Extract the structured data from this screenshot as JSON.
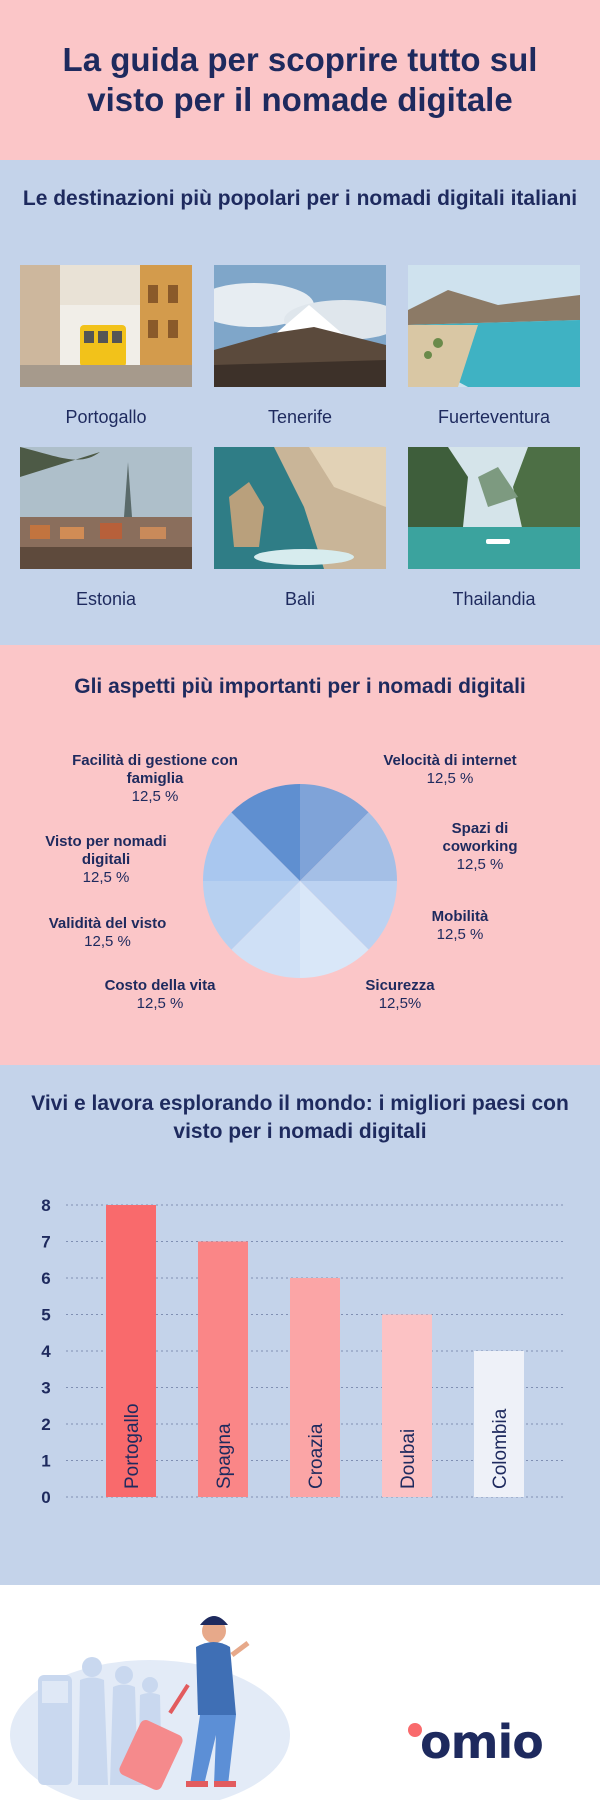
{
  "header": {
    "title": "La guida per scoprire tutto sul visto per il nomade digitale"
  },
  "destinations": {
    "title": "Le destinazioni più popolari per i nomadi digitali italiani",
    "items": [
      {
        "label": "Portogallo"
      },
      {
        "label": "Tenerife"
      },
      {
        "label": "Fuerteventura"
      },
      {
        "label": "Estonia"
      },
      {
        "label": "Bali"
      },
      {
        "label": "Thailandia"
      }
    ]
  },
  "aspects": {
    "title": "Gli aspetti più importanti per i nomadi digitali",
    "labels": [
      {
        "name": "Velocità di internet",
        "value": "12,5 %"
      },
      {
        "name": "Spazi di coworking",
        "value": "12,5 %"
      },
      {
        "name": "Mobilità",
        "value": "12,5 %"
      },
      {
        "name": "Sicurezza",
        "value": "12,5%"
      },
      {
        "name": "Costo della vita",
        "value": "12,5 %"
      },
      {
        "name": "Validità del visto",
        "value": "12,5 %"
      },
      {
        "name": "Visto per nomadi digitali",
        "value": "12,5 %"
      },
      {
        "name": "Facilità di gestione con famiglia",
        "value": "12,5 %"
      }
    ]
  },
  "best": {
    "title": "Vivi e lavora esplorando il mondo: i migliori paesi con visto per i nomadi digitali"
  },
  "chart_data": [
    {
      "type": "pie",
      "title": "Gli aspetti più importanti per i nomadi digitali",
      "categories": [
        "Velocità di internet",
        "Spazi di coworking",
        "Mobilità",
        "Sicurezza",
        "Costo della vita",
        "Validità del visto",
        "Visto per nomadi digitali",
        "Facilità di gestione con famiglia"
      ],
      "values": [
        12.5,
        12.5,
        12.5,
        12.5,
        12.5,
        12.5,
        12.5,
        12.5
      ],
      "colors": [
        "#7fa3d8",
        "#a4bfe6",
        "#bcd2f1",
        "#d9e7f8",
        "#cfe0f6",
        "#b7d0f0",
        "#a9c7ef",
        "#5f8fd0"
      ]
    },
    {
      "type": "bar",
      "title": "Vivi e lavora esplorando il mondo: i migliori paesi con visto per i nomadi digitali",
      "categories": [
        "Portogallo",
        "Spagna",
        "Croazia",
        "Doubai",
        "Colombia"
      ],
      "values": [
        8,
        7,
        6,
        5,
        4
      ],
      "colors": [
        "#f96a6c",
        "#fa8687",
        "#fba5a6",
        "#fcc2c4",
        "#eef1f8"
      ],
      "yticks": [
        "0",
        "1",
        "2",
        "3",
        "4",
        "5",
        "6",
        "7",
        "8"
      ],
      "ylim": [
        0,
        8
      ],
      "grid": true
    }
  ],
  "footer": {
    "logo": "omio"
  }
}
